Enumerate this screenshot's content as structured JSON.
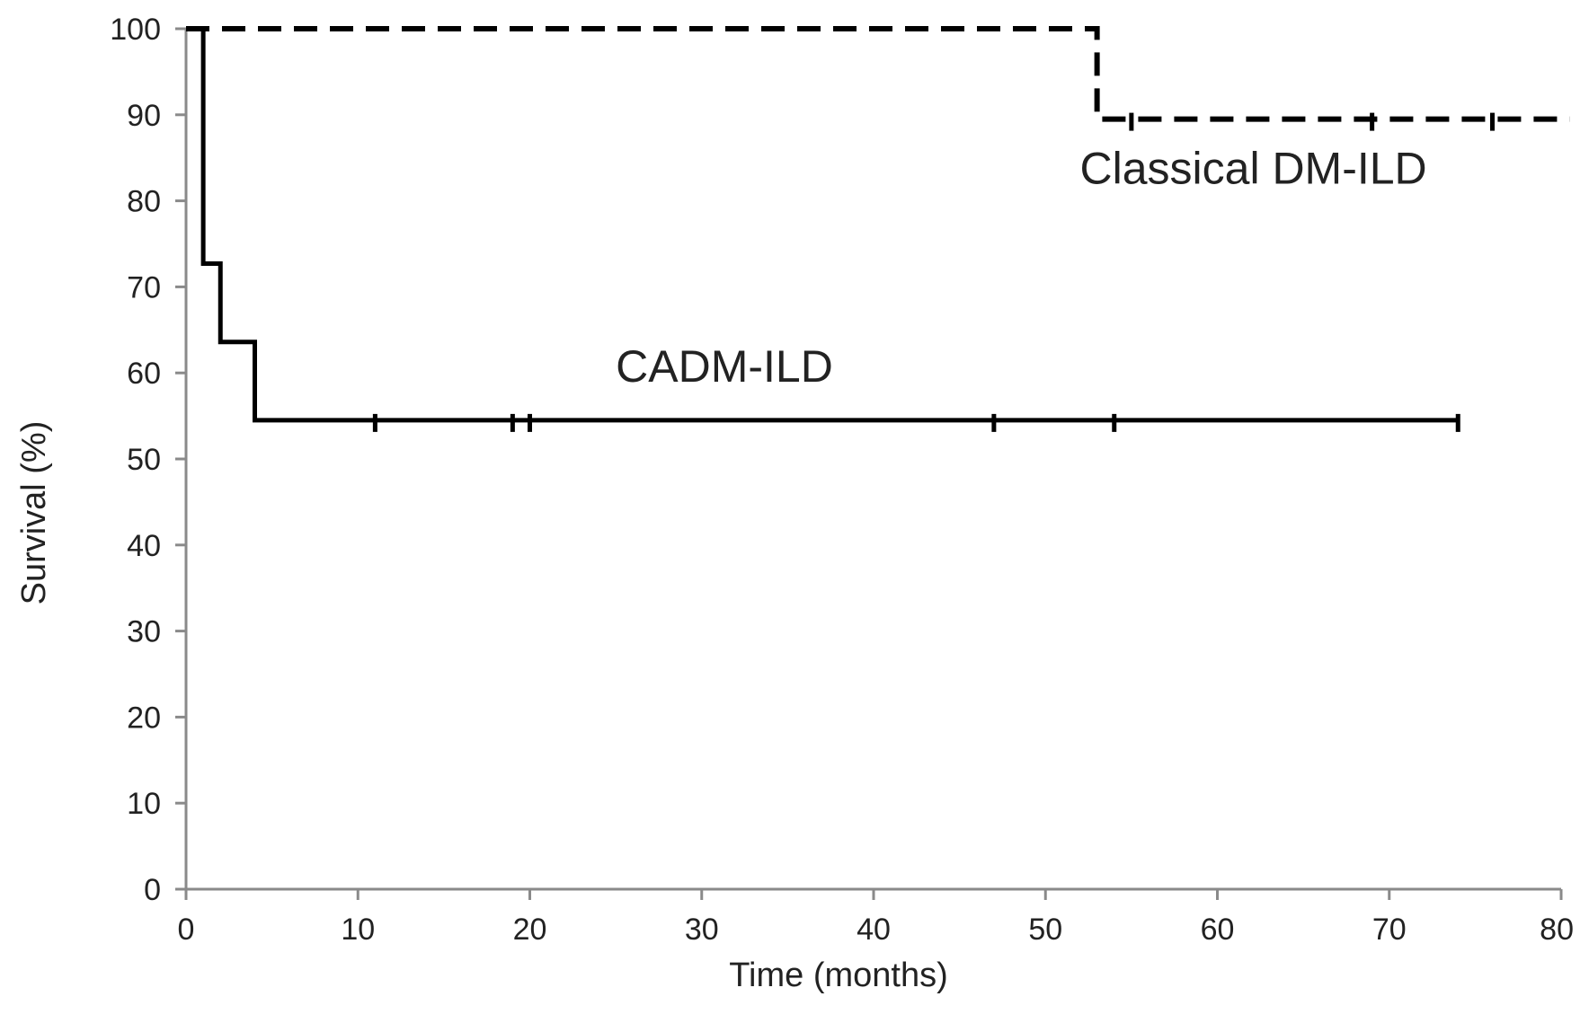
{
  "chart_data": {
    "type": "line",
    "subtype": "kaplan-meier step",
    "xlabel": "Time (months)",
    "ylabel": "Survival (%)",
    "xlim": [
      0,
      80
    ],
    "ylim": [
      0,
      100
    ],
    "x_ticks": [
      0,
      10,
      20,
      30,
      40,
      50,
      60,
      70,
      80
    ],
    "x_tick_labels": [
      "0",
      "10",
      "20",
      "30",
      "40",
      "50",
      "60",
      "70",
      "80"
    ],
    "y_ticks": [
      0,
      10,
      20,
      30,
      40,
      50,
      60,
      70,
      80,
      90,
      100
    ],
    "y_tick_labels": [
      "0",
      "10",
      "20",
      "30",
      "40",
      "50",
      "60",
      "70",
      "80",
      "90",
      "100"
    ],
    "grid": false,
    "series": [
      {
        "name": "Classical DM-ILD",
        "line_style": "dashed",
        "color": "#000000",
        "steps": [
          [
            0,
            100
          ],
          [
            53,
            100
          ],
          [
            53,
            89.5
          ],
          [
            80.5,
            89.5
          ]
        ],
        "censored_x": [
          55,
          69,
          76
        ]
      },
      {
        "name": "CADM-ILD",
        "line_style": "solid",
        "color": "#000000",
        "steps": [
          [
            0,
            100
          ],
          [
            1,
            100
          ],
          [
            1,
            72.7
          ],
          [
            2,
            72.7
          ],
          [
            2,
            63.6
          ],
          [
            4,
            63.6
          ],
          [
            4,
            54.5
          ],
          [
            74,
            54.5
          ]
        ],
        "censored_x": [
          11,
          19,
          20,
          47,
          54,
          74
        ]
      }
    ],
    "annotations": [
      {
        "text": "Classical DM-ILD",
        "x": 52,
        "y": 82
      },
      {
        "text": "CADM-ILD",
        "x": 25,
        "y": 59
      }
    ]
  }
}
